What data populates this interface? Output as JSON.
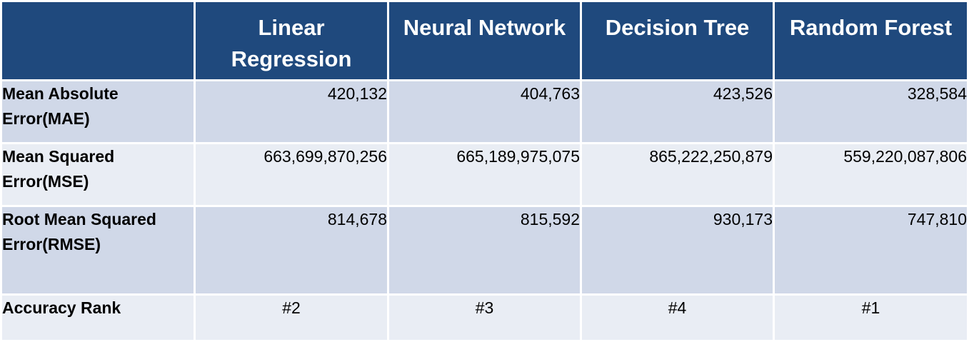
{
  "chart_data": {
    "type": "table",
    "columns": [
      "",
      "Linear Regression",
      "Neural Network",
      "Decision Tree",
      "Random Forest"
    ],
    "rows": [
      {
        "label": "Mean Absolute Error(MAE)",
        "values": [
          "420,132",
          "404,763",
          "423,526",
          "328,584"
        ]
      },
      {
        "label": "Mean Squared Error(MSE)",
        "values": [
          "663,699,870,256",
          "665,189,975,075",
          "865,222,250,879",
          "559,220,087,806"
        ]
      },
      {
        "label": "Root Mean Squared Error(RMSE)",
        "values": [
          "814,678",
          "815,592",
          "930,173",
          "747,810"
        ]
      },
      {
        "label": "Accuracy Rank",
        "values": [
          "#2",
          "#3",
          "#4",
          "#1"
        ]
      }
    ]
  },
  "colors": {
    "header_bg": "#1f497d",
    "header_text": "#ffffff",
    "row_dark": "#d0d8e8",
    "row_light": "#e9edf4"
  }
}
